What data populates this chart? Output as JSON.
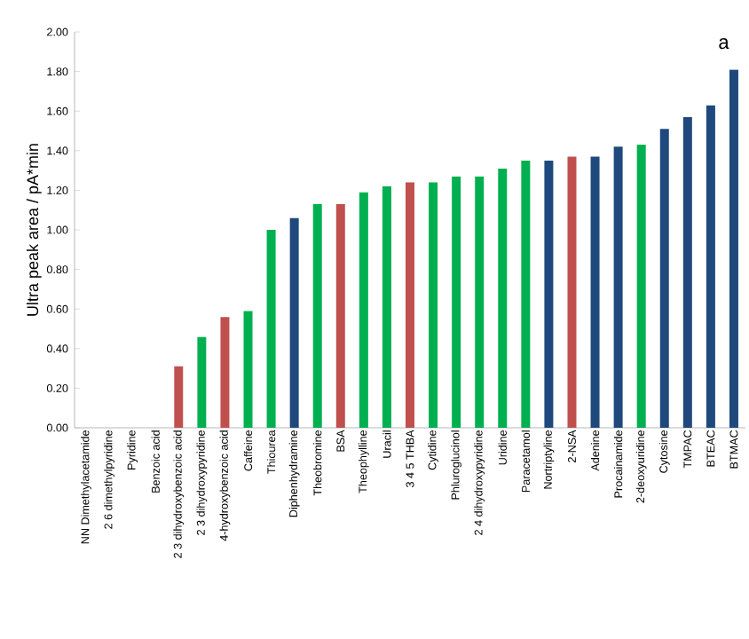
{
  "chart_data": {
    "type": "bar",
    "ylabel": "Ultra peak area / pA*min",
    "annotations": [
      "a"
    ],
    "categories": [
      "NN Dimethylacetamide",
      "2 6 dimethylpyridine",
      "Pyridine",
      "Benzoic acid",
      "2 3 dihydroxybenzoic acid",
      "2 3 dihydroxypyridine",
      "4-hydroxybenzoic acid",
      "Caffeine",
      "Thiourea",
      "Diphenhydramine",
      "Theobromine",
      "BSA",
      "Theophylline",
      "Uracil",
      "3 4 5 THBA",
      "Cytidine",
      "Phluroglucinol",
      "2 4 dihydroxypyridine",
      "Uridine",
      "Paracetamol",
      "Nortriptyline",
      "2-NSA",
      "Adenine",
      "Procainamide",
      "2-deoxyuridine",
      "Cytosine",
      "TMPAC",
      "BTEAC",
      "BTMAC"
    ],
    "values": [
      0,
      0,
      0,
      0,
      0.31,
      0.46,
      0.56,
      0.59,
      1.0,
      1.06,
      1.13,
      1.13,
      1.19,
      1.22,
      1.24,
      1.24,
      1.27,
      1.27,
      1.31,
      1.35,
      1.35,
      1.37,
      1.37,
      1.42,
      1.43,
      1.51,
      1.57,
      1.63,
      1.81
    ],
    "colors": [
      "#c0504d",
      "#c0504d",
      "#c0504d",
      "#c0504d",
      "#c0504d",
      "#00b050",
      "#c0504d",
      "#00b050",
      "#00b050",
      "#1f497d",
      "#00b050",
      "#c0504d",
      "#00b050",
      "#00b050",
      "#c0504d",
      "#00b050",
      "#00b050",
      "#00b050",
      "#00b050",
      "#00b050",
      "#1f497d",
      "#c0504d",
      "#1f497d",
      "#1f497d",
      "#00b050",
      "#1f497d",
      "#1f497d",
      "#1f497d",
      "#1f497d"
    ],
    "ylim": [
      0,
      2
    ],
    "yticks": [
      {
        "value": 0,
        "label": "0.00"
      },
      {
        "value": 0.2,
        "label": "0.20"
      },
      {
        "value": 0.4,
        "label": "0.40"
      },
      {
        "value": 0.6,
        "label": "0.60"
      },
      {
        "value": 0.8,
        "label": "0.80"
      },
      {
        "value": 1.0,
        "label": "1.00"
      },
      {
        "value": 1.2,
        "label": "1.20"
      },
      {
        "value": 1.4,
        "label": "1.40"
      },
      {
        "value": 1.6,
        "label": "1.60"
      },
      {
        "value": 1.8,
        "label": "1.80"
      },
      {
        "value": 2.0,
        "label": "2.00"
      }
    ],
    "grid": false
  }
}
